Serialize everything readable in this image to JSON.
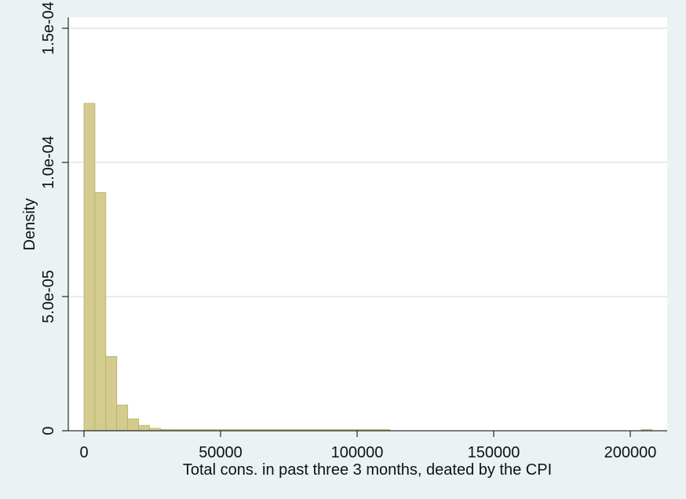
{
  "chart_data": {
    "type": "bar",
    "subtype": "histogram",
    "xlabel": "Total cons. in past three 3 months, deated by the CPI",
    "ylabel": "Density",
    "xlim": [
      0,
      212000
    ],
    "ylim": [
      0,
      0.00015
    ],
    "x_ticks": [
      {
        "value": 0,
        "label": "0"
      },
      {
        "value": 50000,
        "label": "50000"
      },
      {
        "value": 100000,
        "label": "100000"
      },
      {
        "value": 150000,
        "label": "150000"
      },
      {
        "value": 200000,
        "label": "200000"
      }
    ],
    "y_ticks": [
      {
        "value": 0,
        "label": "0"
      },
      {
        "value": 5e-05,
        "label": "5.0e-05"
      },
      {
        "value": 0.0001,
        "label": "1.0e-04"
      },
      {
        "value": 0.00015,
        "label": "1.5e-04"
      }
    ],
    "grid": true,
    "bar_color": "#d4cc8e",
    "bar_edge_color": "#b8ae6c",
    "bin_width": 4000,
    "bins": [
      {
        "x0": 0,
        "x1": 4000,
        "density": 0.000122
      },
      {
        "x0": 4000,
        "x1": 8000,
        "density": 8.88e-05
      },
      {
        "x0": 8000,
        "x1": 12000,
        "density": 2.77e-05
      },
      {
        "x0": 12000,
        "x1": 16000,
        "density": 9.6e-06
      },
      {
        "x0": 16000,
        "x1": 20000,
        "density": 4.4e-06
      },
      {
        "x0": 20000,
        "x1": 24000,
        "density": 2e-06
      },
      {
        "x0": 24000,
        "x1": 28000,
        "density": 9e-07
      },
      {
        "x0": 28000,
        "x1": 32000,
        "density": 5e-07
      },
      {
        "x0": 32000,
        "x1": 36000,
        "density": 3e-07
      },
      {
        "x0": 36000,
        "x1": 40000,
        "density": 3e-07
      },
      {
        "x0": 40000,
        "x1": 44000,
        "density": 2e-07
      },
      {
        "x0": 44000,
        "x1": 48000,
        "density": 2e-07
      },
      {
        "x0": 48000,
        "x1": 52000,
        "density": 2e-07
      },
      {
        "x0": 52000,
        "x1": 56000,
        "density": 2e-07
      },
      {
        "x0": 56000,
        "x1": 60000,
        "density": 2e-07
      },
      {
        "x0": 60000,
        "x1": 64000,
        "density": 2e-07
      },
      {
        "x0": 64000,
        "x1": 68000,
        "density": 2e-07
      },
      {
        "x0": 68000,
        "x1": 72000,
        "density": 2e-07
      },
      {
        "x0": 72000,
        "x1": 76000,
        "density": 2e-07
      },
      {
        "x0": 76000,
        "x1": 80000,
        "density": 2e-07
      },
      {
        "x0": 80000,
        "x1": 84000,
        "density": 2e-07
      },
      {
        "x0": 84000,
        "x1": 88000,
        "density": 2e-07
      },
      {
        "x0": 88000,
        "x1": 92000,
        "density": 2e-07
      },
      {
        "x0": 92000,
        "x1": 96000,
        "density": 2e-07
      },
      {
        "x0": 96000,
        "x1": 100000,
        "density": 2e-07
      },
      {
        "x0": 100000,
        "x1": 104000,
        "density": 2e-07
      },
      {
        "x0": 104000,
        "x1": 108000,
        "density": 2e-07
      },
      {
        "x0": 108000,
        "x1": 112000,
        "density": 2e-07
      },
      {
        "x0": 204000,
        "x1": 208000,
        "density": 2e-07
      }
    ]
  }
}
